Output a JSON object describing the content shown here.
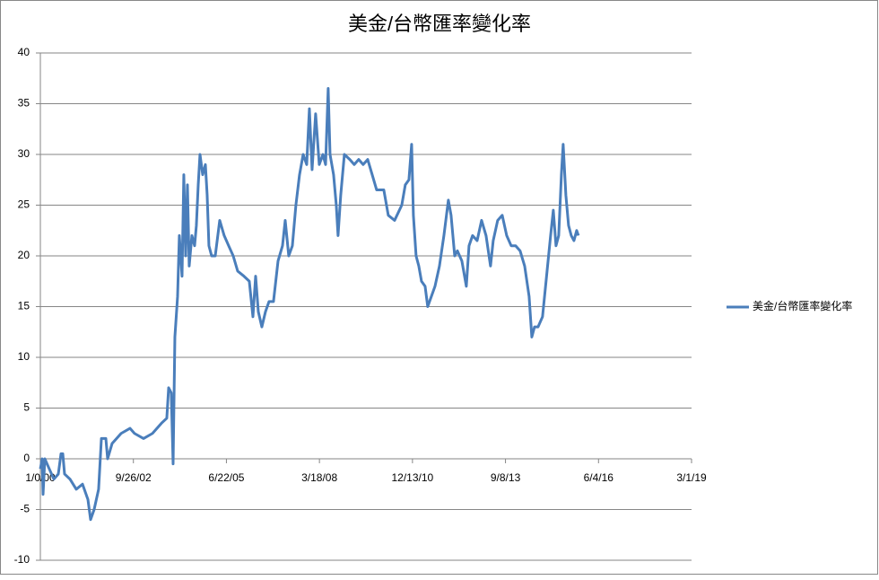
{
  "chart_data": {
    "type": "line",
    "title": "美金/台幣匯率變化率",
    "x": [
      0,
      19,
      29,
      48,
      96,
      145,
      193,
      222,
      241,
      260,
      318,
      386,
      453,
      511,
      540,
      578,
      626,
      656,
      704,
      723,
      771,
      868,
      964,
      1012,
      1109,
      1205,
      1301,
      1359,
      1379,
      1407,
      1427,
      1446,
      1475,
      1494,
      1523,
      1542,
      1562,
      1581,
      1600,
      1629,
      1658,
      1677,
      1697,
      1716,
      1745,
      1774,
      1793,
      1812,
      1841,
      1880,
      1928,
      1976,
      2024,
      2073,
      2121,
      2188,
      2246,
      2285,
      2314,
      2343,
      2381,
      2420,
      2458,
      2506,
      2555,
      2603,
      2632,
      2670,
      2709,
      2747,
      2786,
      2825,
      2863,
      2892,
      2921,
      2959,
      2998,
      3037,
      3066,
      3094,
      3114,
      3152,
      3181,
      3200,
      3229,
      3268,
      3326,
      3374,
      3422,
      3470,
      3519,
      3567,
      3615,
      3692,
      3740,
      3808,
      3885,
      3923,
      3962,
      3991,
      4010,
      4039,
      4068,
      4097,
      4136,
      4164,
      4203,
      4242,
      4290,
      4338,
      4386,
      4415,
      4454,
      4483,
      4531,
      4579,
      4608,
      4646,
      4695,
      4743,
      4791,
      4839,
      4868,
      4916,
      4965,
      5013,
      5061,
      5109,
      5157,
      5206,
      5254,
      5283,
      5312,
      5350,
      5398,
      5447,
      5485,
      5514,
      5543,
      5572,
      5601,
      5620,
      5649,
      5678,
      5707,
      5736,
      5765,
      5784
    ],
    "series": [
      {
        "name": "美金/台幣匯率變化率",
        "color": "#4a7ebb",
        "values": [
          -1,
          0,
          -3.5,
          0,
          -1,
          -2,
          -1.5,
          0.5,
          0.5,
          -1.5,
          -2,
          -3,
          -2.5,
          -4,
          -6,
          -5,
          -3,
          2,
          2,
          0,
          1.5,
          2.5,
          3,
          2.5,
          2,
          2.5,
          3.5,
          4,
          7,
          6.5,
          -0.5,
          12,
          16,
          22,
          18,
          28,
          20,
          27,
          19,
          22,
          21,
          23,
          27,
          30,
          28,
          29,
          26,
          21,
          20,
          20,
          23.5,
          22,
          21,
          20,
          18.5,
          18,
          17.5,
          14,
          18,
          14.5,
          13,
          14.5,
          15.5,
          15.5,
          19.5,
          21,
          23.5,
          20,
          21,
          25,
          28,
          30,
          29,
          34.5,
          28.5,
          34,
          29,
          30,
          29,
          36.5,
          30,
          28,
          25,
          22,
          26,
          30,
          29.5,
          29,
          29.5,
          29,
          29.5,
          28,
          26.5,
          26.5,
          24,
          23.5,
          25,
          27,
          27.5,
          31,
          24,
          20,
          19,
          17.5,
          17,
          15,
          16,
          17,
          19,
          22,
          25.5,
          24,
          20,
          20.5,
          19.5,
          17,
          21,
          22,
          21.5,
          23.5,
          22,
          19,
          21.5,
          23.5,
          24,
          22,
          21,
          21,
          20.5,
          19,
          16,
          12,
          13,
          13,
          14,
          18.5,
          22,
          24.5,
          21,
          22,
          28,
          31,
          26,
          23,
          22,
          21.5,
          22.5,
          22
        ]
      }
    ],
    "xlim": [
      0,
      7000
    ],
    "xticks": [
      {
        "value": 0,
        "label": "1/0/00"
      },
      {
        "value": 1000,
        "label": "9/26/02"
      },
      {
        "value": 2000,
        "label": "6/22/05"
      },
      {
        "value": 3000,
        "label": "3/18/08"
      },
      {
        "value": 4000,
        "label": "12/13/10"
      },
      {
        "value": 5000,
        "label": "9/8/13"
      },
      {
        "value": 6000,
        "label": "6/4/16"
      },
      {
        "value": 7000,
        "label": "3/1/19"
      }
    ],
    "ylim": [
      -10,
      40
    ],
    "yticks": [
      -10,
      -5,
      0,
      5,
      10,
      15,
      20,
      25,
      30,
      35,
      40
    ],
    "grid": true,
    "legend": "right"
  }
}
